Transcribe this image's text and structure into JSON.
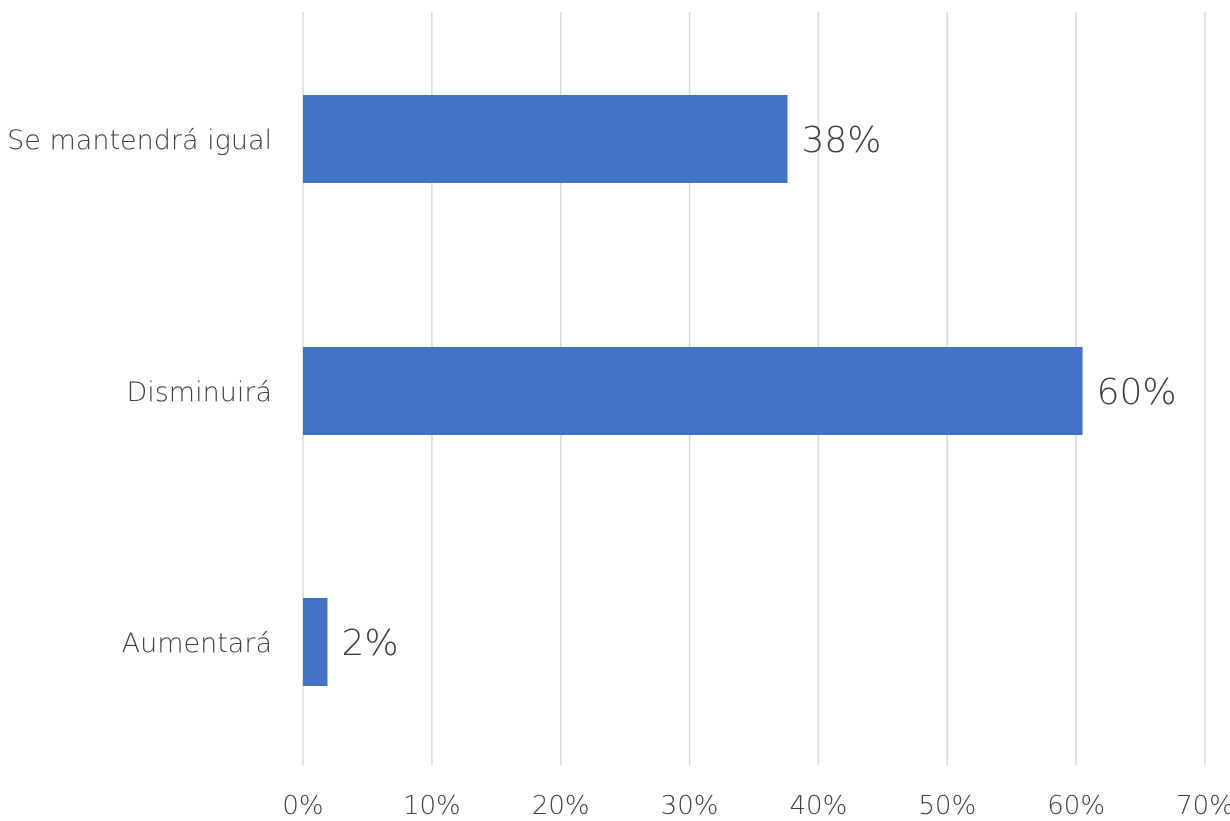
{
  "chart_data": {
    "type": "bar",
    "orientation": "horizontal",
    "categories": [
      "Se mantendrá igual",
      "Disminuirá",
      "Aumentará"
    ],
    "values": [
      37.6,
      60.5,
      1.9
    ],
    "data_labels": [
      "38%",
      "60%",
      "2%"
    ],
    "title": "",
    "xlabel": "",
    "ylabel": "",
    "xlim": [
      0,
      70
    ],
    "x_ticks": [
      0,
      10,
      20,
      30,
      40,
      50,
      60,
      70
    ],
    "x_tick_labels": [
      "0%",
      "10%",
      "20%",
      "30%",
      "40%",
      "50%",
      "60%",
      "70%"
    ],
    "grid": true,
    "legend": "none",
    "colors": {
      "bar": "#4472C4",
      "grid": "#D9D9D9",
      "text": "#404040"
    }
  }
}
